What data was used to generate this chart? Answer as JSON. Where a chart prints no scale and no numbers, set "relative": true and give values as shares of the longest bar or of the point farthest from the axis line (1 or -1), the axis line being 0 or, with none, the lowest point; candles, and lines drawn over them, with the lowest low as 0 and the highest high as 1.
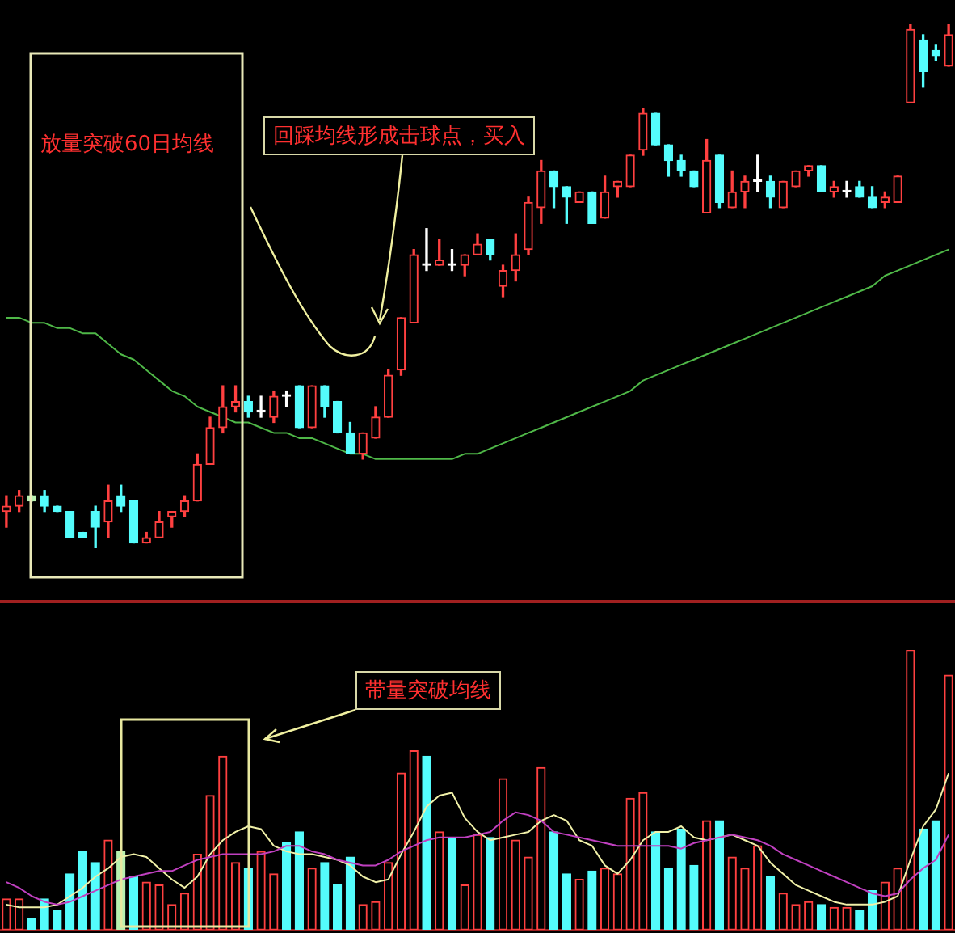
{
  "chart_data": [
    {
      "type": "candlestick",
      "relative": true,
      "annotations": [
        "放量突破60日均线",
        "回踩均线形成击球点，买入"
      ],
      "categories": [
        null,
        null,
        null,
        null,
        null,
        null,
        null,
        null,
        null,
        null,
        null,
        null,
        null,
        null,
        null,
        null,
        null,
        null,
        null,
        null,
        null,
        null,
        null,
        null,
        null,
        null,
        null,
        null,
        null,
        null,
        null,
        null,
        null,
        null,
        null,
        null,
        null,
        null,
        null,
        null,
        null,
        null,
        null,
        null,
        null,
        null,
        null,
        null,
        null,
        null,
        null,
        null,
        null,
        null,
        null,
        null,
        null,
        null,
        null,
        null,
        null,
        null,
        null,
        null,
        null,
        null,
        null,
        null,
        null,
        null,
        null,
        null,
        null,
        null,
        null
      ],
      "ohlc": [
        [
          0.07,
          0.1,
          0.04,
          0.08
        ],
        [
          0.08,
          0.11,
          0.07,
          0.1
        ],
        [
          0.1,
          0.1,
          0.09,
          0.09
        ],
        [
          0.1,
          0.11,
          0.07,
          0.08
        ],
        [
          0.08,
          0.08,
          0.07,
          0.07
        ],
        [
          0.07,
          0.07,
          0.02,
          0.02
        ],
        [
          0.03,
          0.03,
          0.02,
          0.02
        ],
        [
          0.07,
          0.08,
          0.0,
          0.04
        ],
        [
          0.05,
          0.12,
          0.02,
          0.09
        ],
        [
          0.1,
          0.12,
          0.07,
          0.08
        ],
        [
          0.09,
          0.09,
          0.01,
          0.01
        ],
        [
          0.01,
          0.03,
          0.01,
          0.02
        ],
        [
          0.02,
          0.07,
          0.02,
          0.05
        ],
        [
          0.06,
          0.07,
          0.04,
          0.07
        ],
        [
          0.07,
          0.1,
          0.06,
          0.09
        ],
        [
          0.09,
          0.18,
          0.09,
          0.16
        ],
        [
          0.16,
          0.25,
          0.16,
          0.23
        ],
        [
          0.23,
          0.31,
          0.22,
          0.27
        ],
        [
          0.27,
          0.31,
          0.26,
          0.28
        ],
        [
          0.28,
          0.29,
          0.25,
          0.26
        ],
        [
          0.26,
          0.29,
          0.25,
          0.26
        ],
        [
          0.25,
          0.3,
          0.24,
          0.29
        ],
        [
          0.29,
          0.3,
          0.27,
          0.29
        ],
        [
          0.31,
          0.31,
          0.23,
          0.23
        ],
        [
          0.23,
          0.31,
          0.23,
          0.31
        ],
        [
          0.31,
          0.31,
          0.25,
          0.27
        ],
        [
          0.28,
          0.28,
          0.22,
          0.22
        ],
        [
          0.22,
          0.24,
          0.18,
          0.18
        ],
        [
          0.18,
          0.22,
          0.17,
          0.22
        ],
        [
          0.21,
          0.27,
          0.21,
          0.25
        ],
        [
          0.25,
          0.34,
          0.25,
          0.33
        ],
        [
          0.34,
          0.44,
          0.33,
          0.44
        ],
        [
          0.43,
          0.57,
          0.43,
          0.56
        ],
        [
          0.54,
          0.61,
          0.53,
          0.54
        ],
        [
          0.54,
          0.59,
          0.54,
          0.55
        ],
        [
          0.54,
          0.57,
          0.53,
          0.54
        ],
        [
          0.54,
          0.56,
          0.52,
          0.56
        ],
        [
          0.56,
          0.6,
          0.56,
          0.58
        ],
        [
          0.59,
          0.59,
          0.55,
          0.56
        ],
        [
          0.5,
          0.54,
          0.48,
          0.53
        ],
        [
          0.53,
          0.6,
          0.51,
          0.56
        ],
        [
          0.57,
          0.67,
          0.56,
          0.66
        ],
        [
          0.65,
          0.74,
          0.62,
          0.72
        ],
        [
          0.72,
          0.72,
          0.65,
          0.69
        ],
        [
          0.69,
          0.69,
          0.62,
          0.67
        ],
        [
          0.66,
          0.68,
          0.66,
          0.68
        ],
        [
          0.68,
          0.68,
          0.62,
          0.62
        ],
        [
          0.63,
          0.71,
          0.63,
          0.68
        ],
        [
          0.69,
          0.7,
          0.67,
          0.7
        ],
        [
          0.69,
          0.75,
          0.69,
          0.75
        ],
        [
          0.76,
          0.84,
          0.75,
          0.83
        ],
        [
          0.83,
          0.83,
          0.77,
          0.77
        ],
        [
          0.77,
          0.77,
          0.71,
          0.74
        ],
        [
          0.74,
          0.75,
          0.71,
          0.72
        ],
        [
          0.72,
          0.72,
          0.69,
          0.69
        ],
        [
          0.64,
          0.78,
          0.64,
          0.74
        ],
        [
          0.75,
          0.75,
          0.65,
          0.66
        ],
        [
          0.65,
          0.72,
          0.65,
          0.68
        ],
        [
          0.68,
          0.71,
          0.65,
          0.7
        ],
        [
          0.7,
          0.75,
          0.68,
          0.7
        ],
        [
          0.7,
          0.71,
          0.65,
          0.67
        ],
        [
          0.65,
          0.7,
          0.65,
          0.7
        ],
        [
          0.69,
          0.72,
          0.69,
          0.72
        ],
        [
          0.72,
          0.73,
          0.71,
          0.73
        ],
        [
          0.73,
          0.73,
          0.68,
          0.68
        ],
        [
          0.68,
          0.7,
          0.67,
          0.69
        ],
        [
          0.68,
          0.7,
          0.67,
          0.68
        ],
        [
          0.69,
          0.7,
          0.67,
          0.67
        ],
        [
          0.67,
          0.69,
          0.65,
          0.65
        ],
        [
          0.66,
          0.68,
          0.65,
          0.67
        ],
        [
          0.66,
          0.71,
          0.66,
          0.71
        ],
        [
          0.85,
          1.0,
          0.85,
          0.99
        ],
        [
          0.97,
          0.98,
          0.88,
          0.91
        ],
        [
          0.95,
          0.96,
          0.93,
          0.94
        ],
        [
          0.92,
          1.0,
          0.92,
          0.98
        ]
      ],
      "colors": [
        "#ff4040",
        "#ff4040",
        "#b8f0b0",
        "#54fcfc",
        "#54fcfc",
        "#54fcfc",
        "#54fcfc",
        "#54fcfc",
        "#ff4040",
        "#54fcfc",
        "#54fcfc",
        "#ff4040",
        "#ff4040",
        "#ff4040",
        "#ff4040",
        "#ff4040",
        "#ff4040",
        "#ff4040",
        "#ff4040",
        "#54fcfc",
        "#ffffff",
        "#ff4040",
        "#ffffff",
        "#54fcfc",
        "#ff4040",
        "#54fcfc",
        "#54fcfc",
        "#54fcfc",
        "#ff4040",
        "#ff4040",
        "#ff4040",
        "#ff4040",
        "#ff4040",
        "#ffffff",
        "#ff4040",
        "#ffffff",
        "#ff4040",
        "#ff4040",
        "#54fcfc",
        "#ff4040",
        "#ff4040",
        "#ff4040",
        "#ff4040",
        "#54fcfc",
        "#54fcfc",
        "#ff4040",
        "#54fcfc",
        "#ff4040",
        "#ff4040",
        "#ff4040",
        "#ff4040",
        "#54fcfc",
        "#54fcfc",
        "#54fcfc",
        "#54fcfc",
        "#ff4040",
        "#54fcfc",
        "#ff4040",
        "#ff4040",
        "#ffffff",
        "#54fcfc",
        "#ff4040",
        "#ff4040",
        "#ff4040",
        "#54fcfc",
        "#ff4040",
        "#ffffff",
        "#54fcfc",
        "#54fcfc",
        "#ff4040",
        "#ff4040",
        "#ff4040",
        "#54fcfc",
        "#54fcfc",
        "#ff4040"
      ],
      "series": [
        {
          "type": "line",
          "color": "#4fb848",
          "values": [
            0.44,
            0.44,
            0.43,
            0.43,
            0.42,
            0.42,
            0.41,
            0.41,
            0.39,
            0.37,
            0.36,
            0.34,
            0.32,
            0.3,
            0.29,
            0.27,
            0.26,
            0.25,
            0.24,
            0.24,
            0.23,
            0.22,
            0.22,
            0.21,
            0.21,
            0.2,
            0.19,
            0.18,
            0.18,
            0.17,
            0.17,
            0.17,
            0.17,
            0.17,
            0.17,
            0.17,
            0.18,
            0.18,
            0.19,
            0.2,
            0.21,
            0.22,
            0.23,
            0.24,
            0.25,
            0.26,
            0.27,
            0.28,
            0.29,
            0.3,
            0.32,
            0.33,
            0.34,
            0.35,
            0.36,
            0.37,
            0.38,
            0.39,
            0.4,
            0.41,
            0.42,
            0.43,
            0.44,
            0.45,
            0.46,
            0.47,
            0.48,
            0.49,
            0.5,
            0.52,
            0.53,
            0.54,
            0.55,
            0.56,
            0.57
          ]
        }
      ]
    },
    {
      "type": "bar",
      "relative": true,
      "annotations": [
        "带量突破均线"
      ],
      "categories": [
        null,
        null,
        null,
        null,
        null,
        null,
        null,
        null,
        null,
        null,
        null,
        null,
        null,
        null,
        null,
        null,
        null,
        null,
        null,
        null,
        null,
        null,
        null,
        null,
        null,
        null,
        null,
        null,
        null,
        null,
        null,
        null,
        null,
        null,
        null,
        null,
        null,
        null,
        null,
        null,
        null,
        null,
        null,
        null,
        null,
        null,
        null,
        null,
        null,
        null,
        null,
        null,
        null,
        null,
        null,
        null,
        null,
        null,
        null,
        null,
        null,
        null,
        null,
        null,
        null,
        null,
        null,
        null,
        null,
        null,
        null,
        null,
        null,
        null,
        null
      ],
      "series": [
        {
          "type": "bar",
          "colors": [
            "#ff4040",
            "#ff4040",
            "#54fcfc",
            "#54fcfc",
            "#54fcfc",
            "#54fcfc",
            "#54fcfc",
            "#54fcfc",
            "#ff4040",
            "#b8f0b0",
            "#54fcfc",
            "#ff4040",
            "#ff4040",
            "#ff4040",
            "#ff4040",
            "#ff4040",
            "#ff4040",
            "#ff4040",
            "#ff4040",
            "#54fcfc",
            "#ff4040",
            "#ff4040",
            "#54fcfc",
            "#54fcfc",
            "#ff4040",
            "#54fcfc",
            "#54fcfc",
            "#54fcfc",
            "#ff4040",
            "#ff4040",
            "#ff4040",
            "#ff4040",
            "#ff4040",
            "#54fcfc",
            "#ff4040",
            "#54fcfc",
            "#ff4040",
            "#ff4040",
            "#54fcfc",
            "#ff4040",
            "#ff4040",
            "#ff4040",
            "#ff4040",
            "#54fcfc",
            "#54fcfc",
            "#ff4040",
            "#54fcfc",
            "#ff4040",
            "#ff4040",
            "#ff4040",
            "#ff4040",
            "#54fcfc",
            "#54fcfc",
            "#54fcfc",
            "#54fcfc",
            "#ff4040",
            "#54fcfc",
            "#ff4040",
            "#ff4040",
            "#ff4040",
            "#54fcfc",
            "#ff4040",
            "#ff4040",
            "#ff4040",
            "#54fcfc",
            "#ff4040",
            "#ff4040",
            "#54fcfc",
            "#54fcfc",
            "#ff4040",
            "#ff4040",
            "#ff4040",
            "#54fcfc",
            "#54fcfc",
            "#ff4040"
          ],
          "values": [
            0.11,
            0.11,
            0.04,
            0.11,
            0.07,
            0.2,
            0.28,
            0.24,
            0.32,
            0.28,
            0.19,
            0.17,
            0.16,
            0.09,
            0.13,
            0.27,
            0.48,
            0.62,
            0.24,
            0.22,
            0.28,
            0.2,
            0.31,
            0.35,
            0.22,
            0.24,
            0.16,
            0.26,
            0.09,
            0.1,
            0.24,
            0.56,
            0.64,
            0.62,
            0.35,
            0.33,
            0.16,
            0.34,
            0.33,
            0.54,
            0.32,
            0.26,
            0.58,
            0.35,
            0.2,
            0.18,
            0.21,
            0.22,
            0.2,
            0.47,
            0.49,
            0.35,
            0.22,
            0.36,
            0.23,
            0.39,
            0.39,
            0.26,
            0.22,
            0.3,
            0.19,
            0.13,
            0.09,
            0.1,
            0.09,
            0.08,
            0.08,
            0.07,
            0.14,
            0.17,
            0.22,
            1.0,
            0.36,
            0.39,
            0.91
          ]
        },
        {
          "type": "line",
          "color": "#f0f0a8",
          "values": [
            0.09,
            0.08,
            0.08,
            0.08,
            0.09,
            0.12,
            0.15,
            0.19,
            0.22,
            0.26,
            0.27,
            0.26,
            0.22,
            0.18,
            0.15,
            0.19,
            0.27,
            0.32,
            0.35,
            0.37,
            0.36,
            0.3,
            0.28,
            0.27,
            0.27,
            0.26,
            0.25,
            0.23,
            0.19,
            0.17,
            0.18,
            0.27,
            0.35,
            0.44,
            0.48,
            0.49,
            0.4,
            0.35,
            0.32,
            0.33,
            0.34,
            0.35,
            0.39,
            0.41,
            0.39,
            0.32,
            0.3,
            0.23,
            0.2,
            0.25,
            0.32,
            0.35,
            0.35,
            0.37,
            0.33,
            0.32,
            0.33,
            0.34,
            0.32,
            0.3,
            0.24,
            0.2,
            0.16,
            0.14,
            0.12,
            0.1,
            0.09,
            0.09,
            0.09,
            0.1,
            0.12,
            0.25,
            0.37,
            0.43,
            0.56
          ]
        },
        {
          "type": "line",
          "color": "#c040c0",
          "values": [
            0.17,
            0.15,
            0.12,
            0.1,
            0.09,
            0.1,
            0.12,
            0.14,
            0.16,
            0.18,
            0.19,
            0.2,
            0.21,
            0.21,
            0.23,
            0.25,
            0.26,
            0.27,
            0.27,
            0.27,
            0.27,
            0.28,
            0.3,
            0.3,
            0.28,
            0.27,
            0.25,
            0.24,
            0.23,
            0.23,
            0.25,
            0.28,
            0.3,
            0.32,
            0.33,
            0.33,
            0.33,
            0.34,
            0.35,
            0.39,
            0.42,
            0.41,
            0.39,
            0.35,
            0.34,
            0.33,
            0.32,
            0.31,
            0.3,
            0.3,
            0.3,
            0.3,
            0.3,
            0.29,
            0.31,
            0.32,
            0.33,
            0.34,
            0.33,
            0.32,
            0.3,
            0.27,
            0.25,
            0.23,
            0.21,
            0.19,
            0.17,
            0.15,
            0.13,
            0.12,
            0.13,
            0.18,
            0.22,
            0.25,
            0.34
          ]
        }
      ]
    }
  ]
}
